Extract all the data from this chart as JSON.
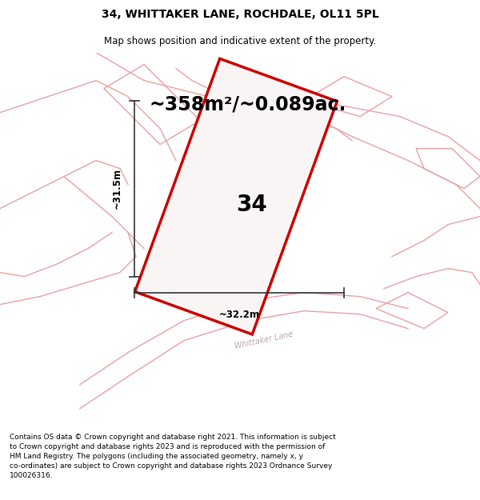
{
  "title": "34, WHITTAKER LANE, ROCHDALE, OL11 5PL",
  "subtitle": "Map shows position and indicative extent of the property.",
  "area_text": "~358m²/~0.089ac.",
  "number_label": "34",
  "dim_vertical": "~31.5m",
  "dim_horizontal": "~32.2m",
  "street_label": "Whittaker Lane",
  "footer": "Contains OS data © Crown copyright and database right 2021. This information is subject to Crown copyright and database rights 2023 and is reproduced with the permission of HM Land Registry. The polygons (including the associated geometry, namely x, y co-ordinates) are subject to Crown copyright and database rights 2023 Ordnance Survey 100026316.",
  "bg_color": "#f5f0f0",
  "map_bg": "#f2eeee",
  "plot_fill": "#faf5f5",
  "plot_edge": "#cc0000",
  "road_color": "#e8a0a0",
  "title_fontsize": 10,
  "subtitle_fontsize": 8.5,
  "area_fontsize": 17,
  "label_fontsize": 20,
  "dim_fontsize": 8.5,
  "footer_fontsize": 6.5,
  "street_fontsize": 7
}
